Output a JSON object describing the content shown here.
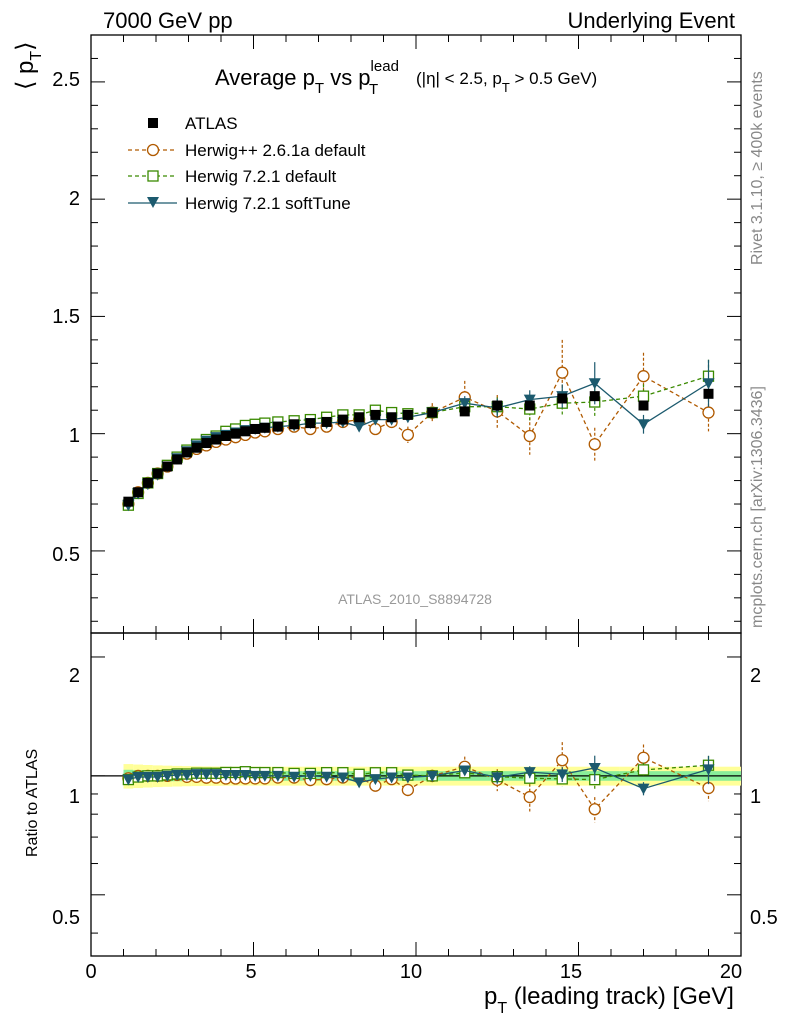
{
  "header": {
    "left": "7000 GeV pp",
    "right": "Underlying Event"
  },
  "side_labels": {
    "rivet": "Rivet 3.1.10, ≥ 400k events",
    "mcplots": "mcplots.cern.ch [arXiv:1306.3436]"
  },
  "plot_title": {
    "main": "Average p",
    "main_sub": "T",
    "vs": " vs p",
    "vs_sub": "T",
    "vs_sup": "lead",
    "cuts_a": "(|η| < 2.5, p",
    "cuts_sub": "T",
    "cuts_b": " > 0.5 GeV)"
  },
  "watermark": "ATLAS_2010_S8894728",
  "axes": {
    "ylabel_main_lbrack": "⟨ p",
    "ylabel_main_sub": "T",
    "ylabel_main_rbrack": "⟩",
    "ylabel_ratio": "Ratio to ATLAS",
    "xlabel_a": "p",
    "xlabel_sub": "T",
    "xlabel_b": " (leading track) [GeV]",
    "main_ticks": [
      "0.5",
      "1",
      "1.5",
      "2",
      "2.5"
    ],
    "ratio_ticks": [
      "0.5",
      "1",
      "2"
    ],
    "x_ticks": [
      "0",
      "5",
      "10",
      "15",
      "20"
    ]
  },
  "legend": [
    {
      "label": "ATLAS",
      "color": "#000000",
      "marker": "filled-square",
      "line": "none"
    },
    {
      "label": "Herwig++ 2.6.1a default",
      "color": "#b05a00",
      "marker": "open-circle",
      "line": "dashed"
    },
    {
      "label": "Herwig 7.2.1 default",
      "color": "#3a8a00",
      "marker": "open-square",
      "line": "dashed"
    },
    {
      "label": "Herwig 7.2.1 softTune",
      "color": "#1c5a6e",
      "marker": "filled-triangle-down",
      "line": "solid"
    }
  ],
  "chart_data": {
    "type": "scatter",
    "x": [
      1.15,
      1.45,
      1.75,
      2.05,
      2.35,
      2.65,
      2.95,
      3.25,
      3.55,
      3.85,
      4.15,
      4.45,
      4.75,
      5.05,
      5.35,
      5.75,
      6.25,
      6.75,
      7.25,
      7.75,
      8.25,
      8.75,
      9.25,
      9.75,
      10.5,
      11.5,
      12.5,
      13.5,
      14.5,
      15.5,
      17.0,
      19.0
    ],
    "series": [
      {
        "name": "ATLAS",
        "y": [
          0.71,
          0.75,
          0.79,
          0.83,
          0.86,
          0.89,
          0.92,
          0.94,
          0.96,
          0.975,
          0.99,
          1.0,
          1.01,
          1.02,
          1.025,
          1.03,
          1.04,
          1.045,
          1.05,
          1.06,
          1.07,
          1.08,
          1.07,
          1.08,
          1.09,
          1.095,
          1.12,
          1.12,
          1.15,
          1.16,
          1.12,
          1.17
        ],
        "yerr": [
          0.01,
          0.01,
          0.01,
          0.01,
          0.01,
          0.01,
          0.01,
          0.01,
          0.01,
          0.01,
          0.01,
          0.01,
          0.01,
          0.01,
          0.01,
          0.01,
          0.01,
          0.01,
          0.01,
          0.01,
          0.01,
          0.01,
          0.01,
          0.01,
          0.01,
          0.01,
          0.01,
          0.01,
          0.01,
          0.01,
          0.01,
          0.01
        ]
      },
      {
        "name": "Herwig++ 2.6.1a default",
        "y": [
          0.7,
          0.75,
          0.79,
          0.83,
          0.86,
          0.895,
          0.915,
          0.935,
          0.95,
          0.965,
          0.975,
          0.985,
          0.995,
          1.005,
          1.01,
          1.02,
          1.03,
          1.02,
          1.03,
          1.05,
          1.06,
          1.02,
          1.05,
          0.995,
          1.09,
          1.155,
          1.095,
          0.99,
          1.26,
          0.955,
          1.245,
          1.09
        ],
        "yerr": [
          0.01,
          0.01,
          0.01,
          0.01,
          0.01,
          0.01,
          0.01,
          0.01,
          0.01,
          0.01,
          0.01,
          0.01,
          0.01,
          0.01,
          0.01,
          0.01,
          0.01,
          0.015,
          0.015,
          0.02,
          0.025,
          0.03,
          0.03,
          0.035,
          0.04,
          0.07,
          0.07,
          0.08,
          0.14,
          0.07,
          0.1,
          0.08
        ]
      },
      {
        "name": "Herwig 7.2.1 default",
        "y": [
          0.695,
          0.745,
          0.79,
          0.83,
          0.865,
          0.9,
          0.93,
          0.955,
          0.975,
          0.99,
          1.01,
          1.02,
          1.035,
          1.04,
          1.045,
          1.05,
          1.055,
          1.06,
          1.07,
          1.08,
          1.08,
          1.1,
          1.09,
          1.085,
          1.09,
          1.115,
          1.115,
          1.105,
          1.13,
          1.135,
          1.16,
          1.245
        ],
        "yerr": [
          0.01,
          0.01,
          0.01,
          0.01,
          0.01,
          0.01,
          0.01,
          0.01,
          0.01,
          0.01,
          0.01,
          0.01,
          0.01,
          0.01,
          0.01,
          0.01,
          0.01,
          0.01,
          0.015,
          0.015,
          0.02,
          0.02,
          0.02,
          0.02,
          0.02,
          0.03,
          0.04,
          0.05,
          0.05,
          0.06,
          0.05,
          0.07
        ]
      },
      {
        "name": "Herwig 7.2.1 softTune",
        "y": [
          0.695,
          0.745,
          0.785,
          0.825,
          0.86,
          0.895,
          0.925,
          0.95,
          0.97,
          0.985,
          0.995,
          1.005,
          1.015,
          1.02,
          1.025,
          1.03,
          1.035,
          1.045,
          1.045,
          1.05,
          1.03,
          1.06,
          1.06,
          1.07,
          1.09,
          1.13,
          1.11,
          1.145,
          1.16,
          1.215,
          1.04,
          1.215
        ],
        "yerr": [
          0.01,
          0.01,
          0.01,
          0.01,
          0.01,
          0.01,
          0.01,
          0.01,
          0.01,
          0.01,
          0.01,
          0.01,
          0.01,
          0.01,
          0.01,
          0.01,
          0.01,
          0.01,
          0.015,
          0.015,
          0.02,
          0.02,
          0.02,
          0.02,
          0.02,
          0.03,
          0.04,
          0.04,
          0.05,
          0.09,
          0.04,
          0.1
        ]
      }
    ],
    "xlim": [
      0,
      20
    ],
    "ylim": [
      0.15,
      2.7
    ],
    "ratio_ylim": [
      0.35,
      2.3
    ],
    "ratio_scale": "log",
    "grid": false,
    "legend_position": "top-left"
  }
}
